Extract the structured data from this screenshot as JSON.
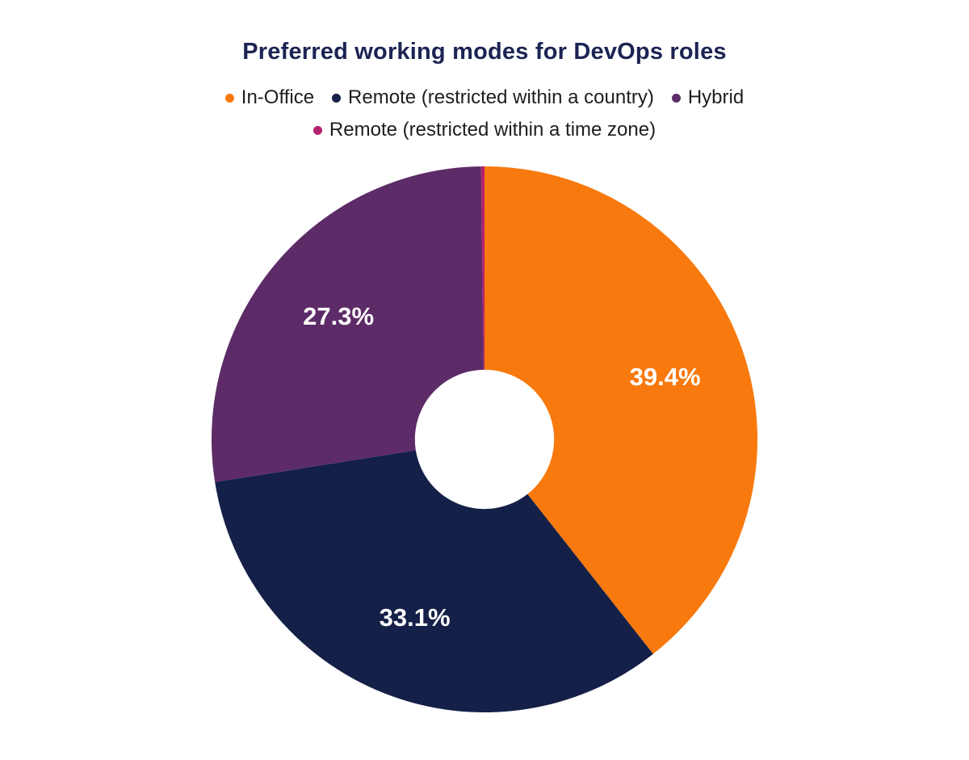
{
  "chart_data": {
    "type": "pie",
    "donut": true,
    "title": "Preferred working modes for DevOps roles",
    "legend_position": "top",
    "start_angle": 0,
    "inner_radius_ratio": 0.255,
    "series": [
      {
        "label": "In-Office",
        "value": 39.4,
        "display": "39.4%",
        "color": "#f8790d"
      },
      {
        "label": "Remote (restricted within a country)",
        "value": 33.1,
        "display": "33.1%",
        "color": "#152048"
      },
      {
        "label": "Hybrid",
        "value": 27.3,
        "display": "27.3%",
        "color": "#5d2b68"
      },
      {
        "label": "Remote (restricted within a time zone)",
        "value": 0.2,
        "display": "",
        "color": "#b5216f"
      }
    ],
    "title_color": "#1b2453",
    "label_color": "#ffffff",
    "background_color": "#ffffff"
  }
}
